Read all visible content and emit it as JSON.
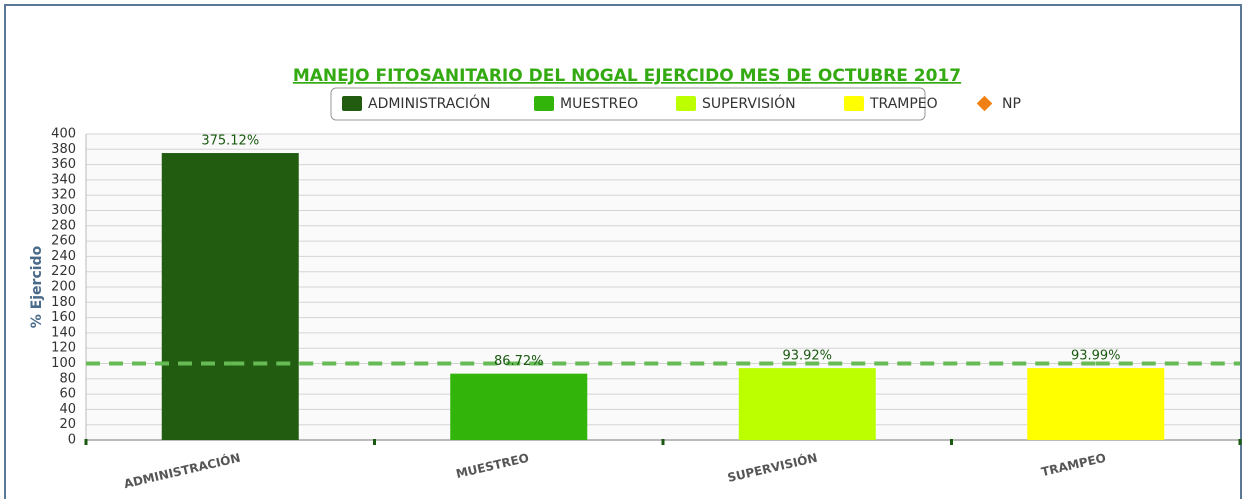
{
  "chart_data": {
    "type": "bar",
    "title": "MANEJO FITOSANITARIO DEL NOGAL EJERCIDO MES DE OCTUBRE 2017",
    "y_label": "% Ejercido",
    "categories": [
      "ADMINISTRACIÓN",
      "MUESTREO",
      "SUPERVISIÓN",
      "TRAMPEO"
    ],
    "series": [
      {
        "name": "ADMINISTRACIÓN",
        "color": "#225c10",
        "values": [
          375.12,
          null,
          null,
          null
        ],
        "value_labels": [
          "375.12%",
          null,
          null,
          null
        ]
      },
      {
        "name": "MUESTREO",
        "color": "#33b40a",
        "values": [
          null,
          86.72,
          null,
          null
        ],
        "value_labels": [
          null,
          "86.72%",
          null,
          null
        ]
      },
      {
        "name": "SUPERVISIÓN",
        "color": "#bbff00",
        "values": [
          null,
          null,
          93.92,
          null
        ],
        "value_labels": [
          null,
          null,
          "93.92%",
          null
        ]
      },
      {
        "name": "TRAMPEO",
        "color": "#ffff00",
        "values": [
          null,
          null,
          null,
          93.99
        ],
        "value_labels": [
          null,
          null,
          null,
          "93.99%"
        ]
      },
      {
        "name": "NP",
        "type": "line",
        "dashed": true,
        "color": "#f07f14",
        "line_color": "#66bb55",
        "values": [
          100,
          100,
          100,
          100
        ]
      }
    ],
    "ylim": [
      0,
      400
    ],
    "yticks": [
      0,
      20,
      40,
      60,
      80,
      100,
      120,
      140,
      160,
      180,
      200,
      220,
      240,
      260,
      280,
      300,
      320,
      340,
      360,
      380,
      400
    ],
    "grid": true
  }
}
